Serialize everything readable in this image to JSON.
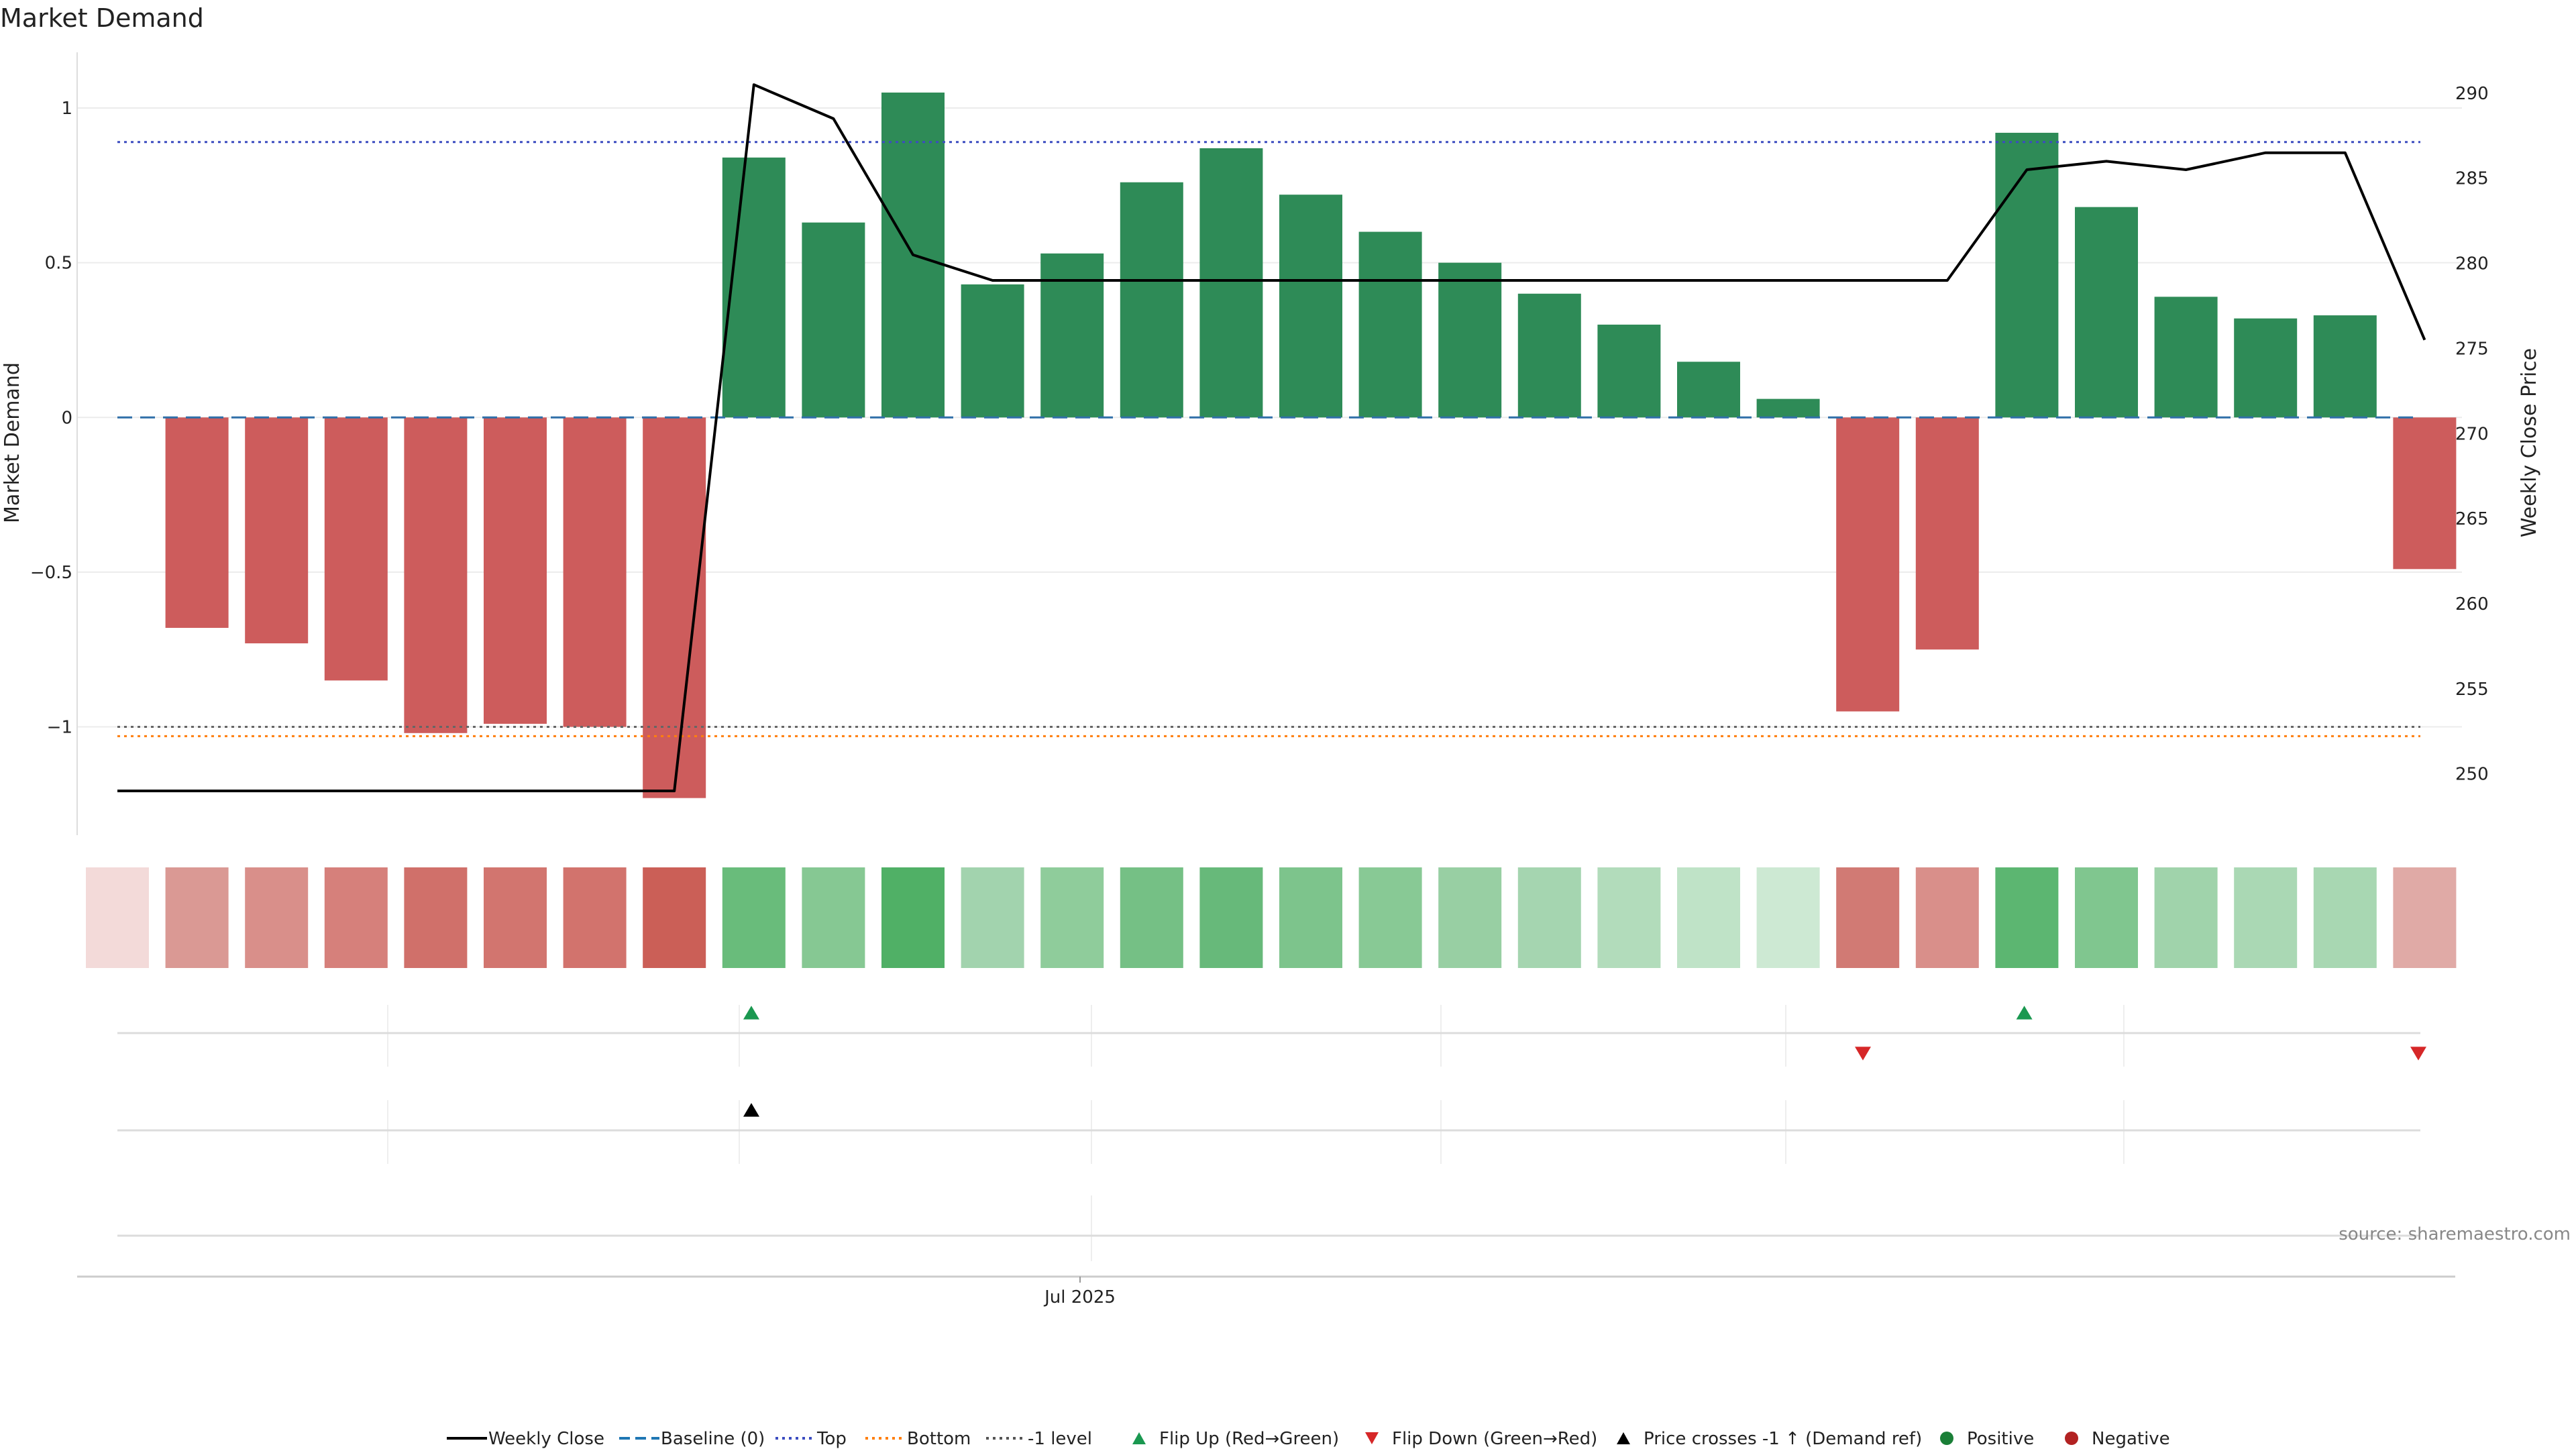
{
  "chart_data": {
    "type": "bar",
    "title": "Market Demand",
    "ylabel_left": "Market Demand",
    "ylabel_right": "Weekly Close Price",
    "ylim_left": [
      -1.35,
      1.18
    ],
    "ylim_right": [
      246.4,
      292.4
    ],
    "yticks_left": [
      {
        "value": 1,
        "label": "1"
      },
      {
        "value": 0.5,
        "label": "0.5"
      },
      {
        "value": 0,
        "label": "0"
      },
      {
        "value": -0.5,
        "label": "−0.5"
      },
      {
        "value": -1,
        "label": "−1"
      }
    ],
    "yticks_right": [
      {
        "value": 290,
        "label": "290"
      },
      {
        "value": 285,
        "label": "285"
      },
      {
        "value": 280,
        "label": "280"
      },
      {
        "value": 275,
        "label": "275"
      },
      {
        "value": 270,
        "label": "270"
      },
      {
        "value": 265,
        "label": "265"
      },
      {
        "value": 260,
        "label": "260"
      },
      {
        "value": 255,
        "label": "255"
      },
      {
        "value": 250,
        "label": "250"
      }
    ],
    "x_tick_label": "Jul 2025",
    "x_tick_index": 12,
    "demand": [
      0,
      -0.68,
      -0.73,
      -0.85,
      -1.02,
      -0.99,
      -1.0,
      -1.23,
      0.84,
      0.63,
      1.05,
      0.43,
      0.53,
      0.76,
      0.87,
      0.72,
      0.6,
      0.5,
      0.4,
      0.3,
      0.18,
      0.06,
      -0.95,
      -0.75,
      0.92,
      0.68,
      0.39,
      0.32,
      0.33,
      -0.49
    ],
    "weekly_close": [
      249,
      249,
      249,
      249,
      249,
      249,
      249,
      249,
      290.5,
      288.5,
      280.5,
      279,
      279,
      279,
      279,
      279,
      279,
      279,
      279,
      279,
      279,
      279,
      279,
      279,
      285.5,
      286,
      285.5,
      286.5,
      286.5,
      275.5
    ],
    "heat_colors": [
      "#f3dad9",
      "#da9994",
      "#d98f8a",
      "#d6807b",
      "#d0706a",
      "#d2756f",
      "#d2736d",
      "#cb5f57",
      "#69bc7b",
      "#86c893",
      "#50b066",
      "#a2d3ae",
      "#8fcc9b",
      "#75c085",
      "#67b97a",
      "#7dc48c",
      "#88c995",
      "#98cfa3",
      "#a5d5b0",
      "#b2dcbb",
      "#bfe3c7",
      "#cde9d3",
      "#d17a74",
      "#d98f8a",
      "#5cb671",
      "#80c68f",
      "#a0d3ab",
      "#aad8b4",
      "#a8d7b2",
      "#e0aaa6"
    ],
    "top_level": 0.89,
    "bottom_level": -1.03,
    "minus1_level": -1,
    "baseline": 0,
    "flip_up_indices": [
      8,
      24
    ],
    "flip_down_indices": [
      22,
      29
    ],
    "price_cross_indices": [
      8
    ],
    "positive_color": "#2e8b57",
    "negative_color": "#cd5c5c",
    "legend": [
      {
        "label": "Weekly Close",
        "kind": "line",
        "color": "#000000"
      },
      {
        "label": "Baseline (0)",
        "kind": "dash",
        "color": "#1f77b4"
      },
      {
        "label": "Top",
        "kind": "dot",
        "color": "#3b4cc0"
      },
      {
        "label": "Bottom",
        "kind": "dot",
        "color": "#ff7f0e"
      },
      {
        "label": "-1 level",
        "kind": "dot",
        "color": "#555555"
      },
      {
        "label": "Flip Up (Red→Green)",
        "kind": "tri-up",
        "color": "#1a9850"
      },
      {
        "label": "Flip Down (Green→Red)",
        "kind": "tri-down",
        "color": "#d62728"
      },
      {
        "label": "Price crosses -1 ↑ (Demand ref)",
        "kind": "tri-up",
        "color": "#000000"
      },
      {
        "label": "Positive",
        "kind": "circle",
        "color": "#1a7f37"
      },
      {
        "label": "Negative",
        "kind": "circle",
        "color": "#b22222"
      }
    ],
    "legend_placement": "bottom"
  },
  "source_text": "source: sharemaestro.com"
}
